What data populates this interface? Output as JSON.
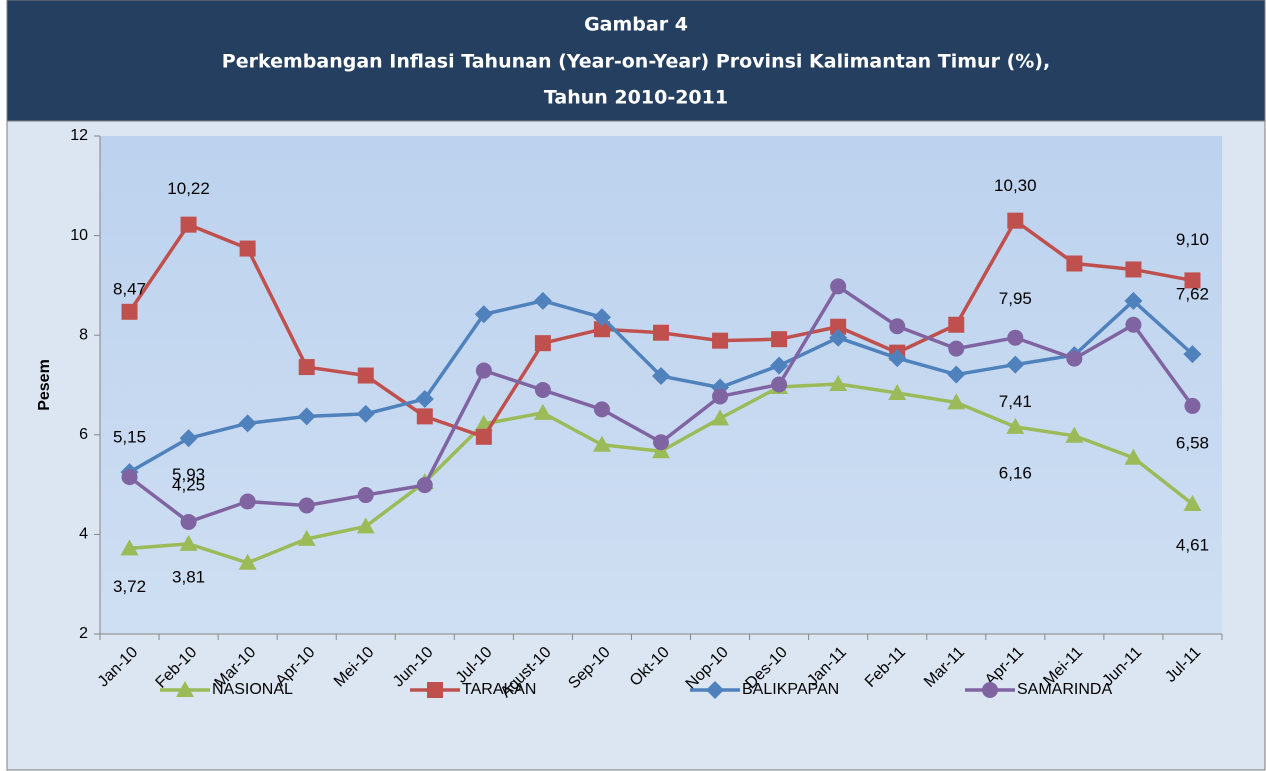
{
  "chart_data": {
    "type": "line",
    "title": [
      "Gambar 4",
      "Perkembangan Inflasi Tahunan (Year-on-Year) Provinsi Kalimantan Timur (%),",
      "Tahun 2010-2011"
    ],
    "y_label": "Pesem",
    "categories": [
      "Jan-10",
      "Feb-10",
      "Mar-10",
      "Apr-10",
      "Mei-10",
      "Jun-10",
      "Jul-10",
      "Agust-10",
      "Sep-10",
      "Okt-10",
      "Nop-10",
      "Des-10",
      "Jan-11",
      "Feb-11",
      "Mar-11",
      "Apr-11",
      "Mei-11",
      "Jun-11",
      "Jul-11"
    ],
    "ylim": [
      2,
      12
    ],
    "yticks": [
      2,
      4,
      6,
      8,
      10,
      12
    ],
    "legend": "bottom",
    "series": [
      {
        "name": "NASIONAL",
        "color": "#9bbb59",
        "marker": "triangle",
        "values": [
          3.72,
          3.81,
          3.43,
          3.91,
          4.16,
          5.05,
          6.22,
          6.44,
          5.8,
          5.67,
          6.33,
          6.96,
          7.02,
          6.84,
          6.65,
          6.16,
          5.98,
          5.54,
          4.61
        ],
        "value_labels": [
          "3,72",
          "3,81",
          null,
          null,
          null,
          null,
          null,
          null,
          null,
          null,
          null,
          null,
          null,
          null,
          null,
          "6,16",
          null,
          null,
          "4,61"
        ]
      },
      {
        "name": "TARAKAN",
        "color": "#c0504d",
        "marker": "square",
        "values": [
          8.47,
          10.22,
          9.74,
          7.36,
          7.19,
          6.37,
          5.96,
          7.84,
          8.12,
          8.05,
          7.89,
          7.92,
          8.17,
          7.65,
          8.21,
          10.3,
          9.44,
          9.32,
          9.1
        ],
        "value_labels": [
          "8,47",
          "10,22",
          null,
          null,
          null,
          null,
          null,
          null,
          null,
          null,
          null,
          null,
          null,
          null,
          null,
          "10,30",
          null,
          null,
          "9,10"
        ]
      },
      {
        "name": "BALIKPAPAN",
        "color": "#4f81bd",
        "marker": "diamond",
        "values": [
          5.25,
          5.93,
          6.23,
          6.37,
          6.42,
          6.72,
          8.42,
          8.69,
          8.36,
          7.18,
          6.95,
          7.39,
          7.95,
          7.54,
          7.21,
          7.41,
          7.6,
          8.69,
          7.62
        ],
        "value_labels": [
          null,
          "5,93",
          null,
          null,
          null,
          null,
          null,
          null,
          null,
          null,
          null,
          null,
          null,
          null,
          null,
          "7,41",
          null,
          null,
          "7,62"
        ]
      },
      {
        "name": "SAMARINDA",
        "color": "#8064a2",
        "marker": "circle",
        "values": [
          5.15,
          4.25,
          4.66,
          4.58,
          4.79,
          4.99,
          7.29,
          6.9,
          6.51,
          5.85,
          6.77,
          7.01,
          8.98,
          8.18,
          7.73,
          7.95,
          7.53,
          8.21,
          6.58
        ],
        "value_labels": [
          "5,15",
          "4,25",
          null,
          null,
          null,
          null,
          null,
          null,
          null,
          null,
          null,
          null,
          null,
          null,
          null,
          "7,95",
          null,
          null,
          "6,58"
        ]
      }
    ]
  }
}
